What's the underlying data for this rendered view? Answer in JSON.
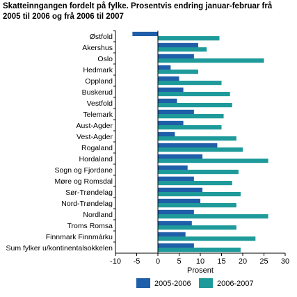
{
  "title_lines": [
    "Skatteinngangen fordelt på fylke. Prosentvis endring januar-februar frå",
    "2005 til 2006 og frå 2006 til 2007"
  ],
  "chart_data": {
    "type": "bar",
    "orientation": "horizontal",
    "title": "Skatteinngangen fordelt på fylke. Prosentvis endring januar-februar frå 2005 til 2006 og frå 2006 til 2007",
    "xlabel": "Prosent",
    "ylabel": "",
    "xlim": [
      -10,
      30
    ],
    "xticks": [
      -10,
      -5,
      0,
      5,
      10,
      15,
      20,
      25,
      30
    ],
    "grid": false,
    "legend_position": "bottom",
    "categories": [
      "Østfold",
      "Akershus",
      "Oslo",
      "Hedmark",
      "Oppland",
      "Buskerud",
      "Vestfold",
      "Telemark",
      "Aust-Agder",
      "Vest-Agder",
      "Rogaland",
      "Hordaland",
      "Sogn og Fjordane",
      "Møre og Romsdal",
      "Sør-Trøndelag",
      "Nord-Trøndelag",
      "Nordland",
      "Troms Romsa",
      "Finnmark Finnmárku",
      "Sum fylker u/kontinentalsokkelen"
    ],
    "series": [
      {
        "name": "2005-2006",
        "color": "#1f5ea8",
        "values": [
          -6.0,
          9.5,
          8.5,
          3.0,
          5.0,
          6.0,
          4.5,
          8.5,
          6.0,
          4.0,
          14.0,
          10.5,
          7.0,
          8.5,
          10.5,
          10.0,
          8.5,
          8.0,
          6.5,
          8.5
        ]
      },
      {
        "name": "2006-2007",
        "color": "#1e9a9a",
        "values": [
          14.5,
          11.5,
          25.0,
          9.5,
          15.0,
          17.0,
          17.5,
          15.5,
          15.0,
          18.5,
          20.0,
          26.0,
          19.0,
          17.5,
          19.5,
          18.5,
          26.0,
          18.5,
          23.0,
          19.5
        ]
      }
    ]
  },
  "colors": {
    "axis": "#000000",
    "background": "#ffffff"
  }
}
